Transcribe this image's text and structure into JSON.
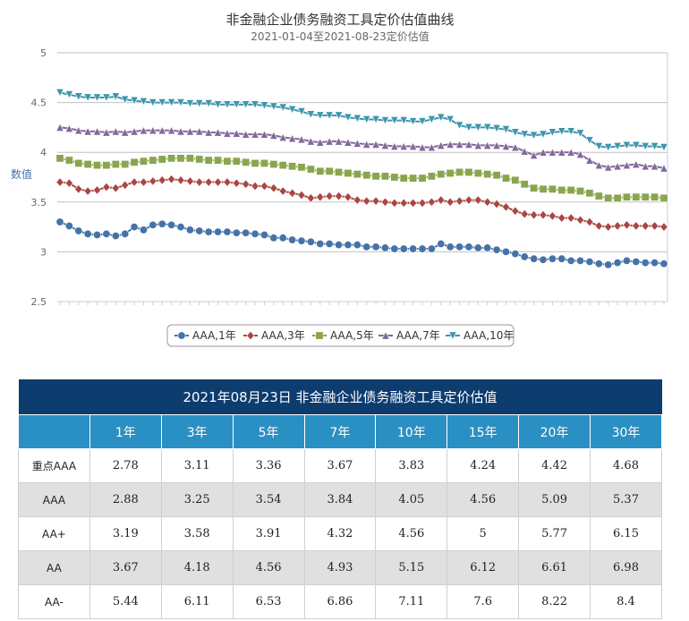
{
  "chart_data": {
    "type": "line",
    "title": "非金融企业债务融资工具定价估值曲线",
    "subtitle": "2021-01-04至2021-08-23定价估值",
    "ylabel": "数值",
    "xlabel": "",
    "ylim": [
      2.5,
      5
    ],
    "yticks": [
      "5",
      "4.5",
      "4",
      "3.5",
      "3",
      "2.5"
    ],
    "legend_position": "bottom",
    "grid": true,
    "series": [
      {
        "name": "AAA,1年",
        "color": "#4572a7",
        "marker": "circle",
        "values": [
          3.3,
          3.26,
          3.21,
          3.18,
          3.17,
          3.18,
          3.16,
          3.18,
          3.25,
          3.22,
          3.27,
          3.28,
          3.27,
          3.25,
          3.22,
          3.21,
          3.2,
          3.2,
          3.2,
          3.19,
          3.19,
          3.18,
          3.17,
          3.14,
          3.14,
          3.12,
          3.11,
          3.1,
          3.08,
          3.08,
          3.07,
          3.07,
          3.07,
          3.05,
          3.05,
          3.04,
          3.03,
          3.03,
          3.03,
          3.03,
          3.03,
          3.08,
          3.05,
          3.05,
          3.05,
          3.04,
          3.04,
          3.02,
          3.0,
          2.98,
          2.95,
          2.93,
          2.92,
          2.93,
          2.93,
          2.91,
          2.91,
          2.9,
          2.88,
          2.87,
          2.89,
          2.91,
          2.9,
          2.89,
          2.89,
          2.88
        ]
      },
      {
        "name": "AAA,3年",
        "color": "#aa4643",
        "marker": "diamond",
        "values": [
          3.7,
          3.69,
          3.63,
          3.61,
          3.62,
          3.65,
          3.64,
          3.67,
          3.7,
          3.7,
          3.71,
          3.72,
          3.73,
          3.72,
          3.71,
          3.7,
          3.7,
          3.7,
          3.7,
          3.69,
          3.68,
          3.66,
          3.66,
          3.64,
          3.61,
          3.59,
          3.57,
          3.54,
          3.55,
          3.56,
          3.56,
          3.55,
          3.52,
          3.51,
          3.51,
          3.5,
          3.49,
          3.49,
          3.49,
          3.49,
          3.5,
          3.52,
          3.5,
          3.51,
          3.52,
          3.52,
          3.5,
          3.48,
          3.45,
          3.41,
          3.38,
          3.37,
          3.37,
          3.36,
          3.34,
          3.34,
          3.32,
          3.3,
          3.26,
          3.25,
          3.26,
          3.27,
          3.26,
          3.26,
          3.26,
          3.25
        ]
      },
      {
        "name": "AAA,5年",
        "color": "#89a54e",
        "marker": "square",
        "values": [
          3.94,
          3.92,
          3.89,
          3.88,
          3.87,
          3.87,
          3.88,
          3.88,
          3.9,
          3.91,
          3.92,
          3.93,
          3.94,
          3.94,
          3.94,
          3.93,
          3.92,
          3.92,
          3.91,
          3.91,
          3.9,
          3.89,
          3.89,
          3.88,
          3.87,
          3.86,
          3.85,
          3.83,
          3.81,
          3.81,
          3.8,
          3.79,
          3.78,
          3.77,
          3.76,
          3.76,
          3.75,
          3.74,
          3.74,
          3.74,
          3.76,
          3.78,
          3.79,
          3.8,
          3.8,
          3.79,
          3.78,
          3.77,
          3.74,
          3.72,
          3.68,
          3.64,
          3.63,
          3.63,
          3.62,
          3.62,
          3.61,
          3.59,
          3.56,
          3.54,
          3.54,
          3.55,
          3.55,
          3.55,
          3.55,
          3.54
        ]
      },
      {
        "name": "AAA,7年",
        "color": "#80699b",
        "marker": "triangle",
        "values": [
          4.25,
          4.24,
          4.22,
          4.21,
          4.21,
          4.2,
          4.21,
          4.2,
          4.21,
          4.22,
          4.22,
          4.22,
          4.22,
          4.21,
          4.21,
          4.21,
          4.2,
          4.2,
          4.19,
          4.19,
          4.18,
          4.18,
          4.18,
          4.17,
          4.15,
          4.14,
          4.13,
          4.11,
          4.1,
          4.11,
          4.11,
          4.1,
          4.09,
          4.08,
          4.08,
          4.07,
          4.06,
          4.06,
          4.06,
          4.05,
          4.05,
          4.07,
          4.08,
          4.08,
          4.08,
          4.07,
          4.07,
          4.07,
          4.06,
          4.05,
          4.01,
          3.97,
          4.0,
          4.0,
          4.0,
          4.0,
          3.98,
          3.92,
          3.87,
          3.85,
          3.86,
          3.87,
          3.88,
          3.86,
          3.86,
          3.84
        ]
      },
      {
        "name": "AAA,10年",
        "color": "#3d96ae",
        "marker": "triangle-down",
        "values": [
          4.6,
          4.58,
          4.56,
          4.55,
          4.55,
          4.55,
          4.56,
          4.53,
          4.52,
          4.51,
          4.5,
          4.5,
          4.5,
          4.5,
          4.49,
          4.49,
          4.49,
          4.48,
          4.48,
          4.48,
          4.48,
          4.48,
          4.47,
          4.46,
          4.45,
          4.43,
          4.41,
          4.38,
          4.37,
          4.37,
          4.37,
          4.35,
          4.34,
          4.33,
          4.33,
          4.32,
          4.32,
          4.32,
          4.31,
          4.31,
          4.33,
          4.35,
          4.33,
          4.27,
          4.25,
          4.25,
          4.25,
          4.24,
          4.23,
          4.2,
          4.18,
          4.17,
          4.18,
          4.2,
          4.21,
          4.21,
          4.19,
          4.12,
          4.06,
          4.05,
          4.06,
          4.07,
          4.07,
          4.06,
          4.06,
          4.05
        ]
      }
    ]
  },
  "table": {
    "title": "2021年08月23日  非金融企业债务融资工具定价估值",
    "headers": [
      "",
      "1年",
      "3年",
      "5年",
      "7年",
      "10年",
      "15年",
      "20年",
      "30年"
    ],
    "rows": [
      {
        "name": "重点AAA",
        "values": [
          "2.78",
          "3.11",
          "3.36",
          "3.67",
          "3.83",
          "4.24",
          "4.42",
          "4.68"
        ]
      },
      {
        "name": "AAA",
        "values": [
          "2.88",
          "3.25",
          "3.54",
          "3.84",
          "4.05",
          "4.56",
          "5.09",
          "5.37"
        ]
      },
      {
        "name": "AA+",
        "values": [
          "3.19",
          "3.58",
          "3.91",
          "4.32",
          "4.56",
          "5",
          "5.77",
          "6.15"
        ]
      },
      {
        "name": "AA",
        "values": [
          "3.67",
          "4.18",
          "4.56",
          "4.93",
          "5.15",
          "6.12",
          "6.61",
          "6.98"
        ]
      },
      {
        "name": "AA-",
        "values": [
          "5.44",
          "6.11",
          "6.53",
          "6.86",
          "7.11",
          "7.6",
          "8.22",
          "8.4"
        ]
      }
    ]
  }
}
